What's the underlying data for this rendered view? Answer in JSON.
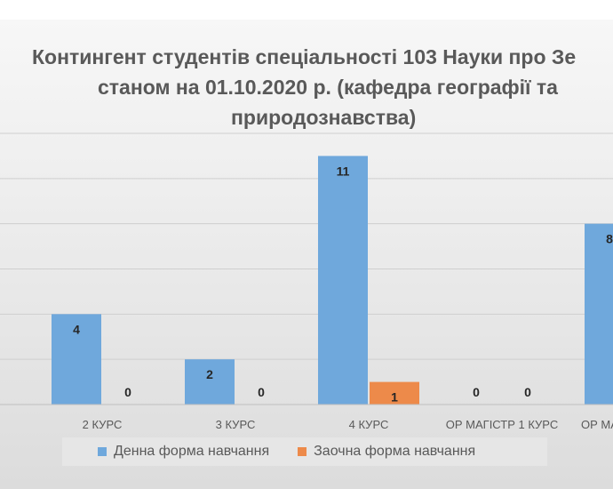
{
  "chart_data": {
    "type": "bar",
    "title_lines": [
      "Контингент студентів спеціальності 103 Науки про Зе",
      "станом на 01.10.2020 р. (кафедра географії та",
      "природознавства)"
    ],
    "categories": [
      "2 КУРС",
      "3 КУРС",
      "4 КУРС",
      "ОР МАГІСТР 1 КУРС",
      "ОР МА"
    ],
    "series": [
      {
        "name": "Денна форма навчання",
        "values": [
          4,
          2,
          11,
          0,
          8
        ],
        "color": "#6fa8dc"
      },
      {
        "name": "Заочна форма навчання",
        "values": [
          0,
          0,
          1,
          0,
          null
        ],
        "color": "#ed8a4a"
      }
    ],
    "ylim": [
      0,
      12
    ],
    "grid": true,
    "legend_position": "bottom"
  }
}
